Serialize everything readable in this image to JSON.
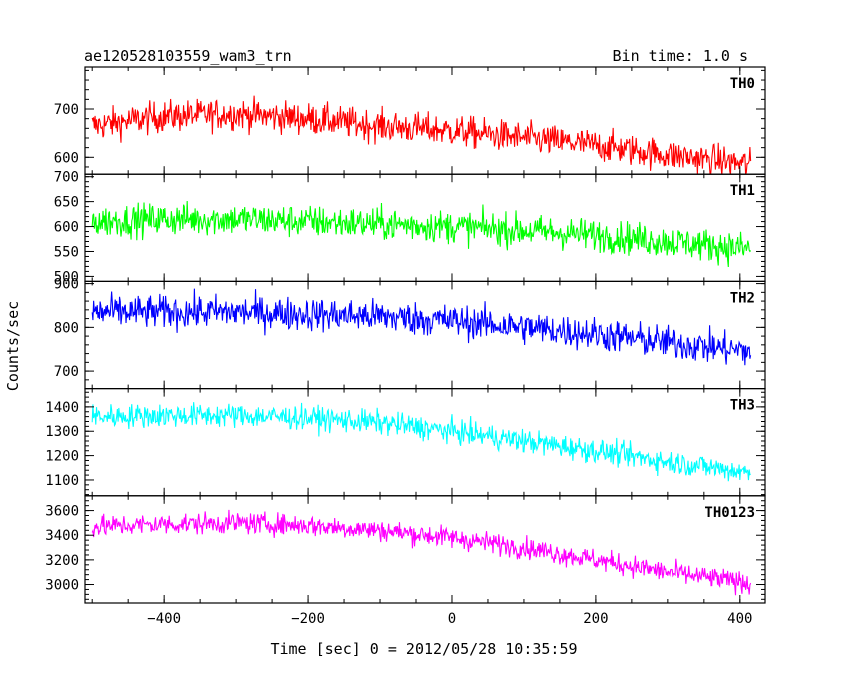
{
  "chart_data": {
    "type": "line",
    "title": "ae120528103559_wam3_trn",
    "subtitle": "Bin time: 1.0 s",
    "xlabel": "Time [sec] 0 = 2012/05/28 10:35:59",
    "ylabel": "Counts/sec",
    "xlim": [
      -510,
      435
    ],
    "xticks": [
      -400,
      -200,
      0,
      200,
      400
    ],
    "x_range": [
      -500,
      415
    ],
    "panels": [
      {
        "name": "TH0",
        "color": "#ff0000",
        "ylim": [
          565,
          787
        ],
        "yticks": [
          600,
          700
        ],
        "trend_x": [
          -500,
          -400,
          -300,
          -200,
          -100,
          0,
          100,
          200,
          300,
          415
        ],
        "trend_y": [
          665,
          685,
          690,
          680,
          665,
          655,
          640,
          625,
          605,
          585
        ],
        "noise": 30
      },
      {
        "name": "TH1",
        "color": "#00ff00",
        "ylim": [
          490,
          705
        ],
        "yticks": [
          500,
          550,
          600,
          650,
          700
        ],
        "trend_x": [
          -500,
          -400,
          -300,
          -200,
          -100,
          0,
          100,
          200,
          300,
          415
        ],
        "trend_y": [
          610,
          615,
          615,
          610,
          605,
          600,
          592,
          583,
          570,
          555
        ],
        "noise": 30
      },
      {
        "name": "TH2",
        "color": "#0000ff",
        "ylim": [
          660,
          905
        ],
        "yticks": [
          700,
          800,
          900
        ],
        "trend_x": [
          -500,
          -400,
          -300,
          -200,
          -100,
          0,
          100,
          200,
          300,
          415
        ],
        "trend_y": [
          835,
          835,
          835,
          830,
          825,
          815,
          800,
          785,
          765,
          745
        ],
        "noise": 35
      },
      {
        "name": "TH3",
        "color": "#00ffff",
        "ylim": [
          1035,
          1475
        ],
        "yticks": [
          1100,
          1200,
          1300,
          1400
        ],
        "trend_x": [
          -500,
          -400,
          -300,
          -200,
          -100,
          0,
          100,
          200,
          300,
          415
        ],
        "trend_y": [
          1360,
          1365,
          1365,
          1355,
          1335,
          1300,
          1260,
          1220,
          1175,
          1130
        ],
        "noise": 45
      },
      {
        "name": "TH0123",
        "color": "#ff00ff",
        "ylim": [
          2850,
          3720
        ],
        "yticks": [
          3000,
          3200,
          3400,
          3600
        ],
        "trend_x": [
          -500,
          -400,
          -300,
          -200,
          -100,
          0,
          100,
          200,
          300,
          415
        ],
        "trend_y": [
          3470,
          3490,
          3500,
          3480,
          3440,
          3380,
          3300,
          3200,
          3100,
          3010
        ],
        "noise": 80
      }
    ]
  }
}
